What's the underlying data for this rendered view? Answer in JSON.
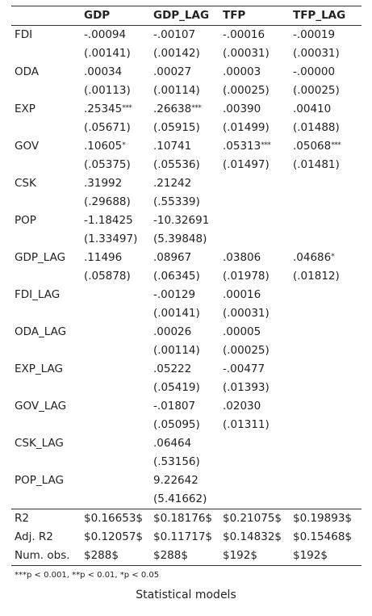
{
  "table": {
    "headers": [
      "",
      "GDP",
      "GDP_LAG",
      "TFP",
      "TFP_LAG"
    ],
    "rows": [
      {
        "label": "FDI",
        "coef": [
          [
            "-.00094",
            ""
          ],
          [
            "-.00107",
            ""
          ],
          [
            "-.00016",
            ""
          ],
          [
            "-.00019",
            ""
          ]
        ],
        "se": [
          "(.00141)",
          "(.00142)",
          "(.00031)",
          "(.00031)"
        ]
      },
      {
        "label": "ODA",
        "coef": [
          [
            ".00034",
            ""
          ],
          [
            ".00027",
            ""
          ],
          [
            ".00003",
            ""
          ],
          [
            "-.00000",
            ""
          ]
        ],
        "se": [
          "(.00113)",
          "(.00114)",
          "(.00025)",
          "(.00025)"
        ]
      },
      {
        "label": "EXP",
        "coef": [
          [
            ".25345",
            "***"
          ],
          [
            ".26638",
            "***"
          ],
          [
            ".00390",
            ""
          ],
          [
            ".00410",
            ""
          ]
        ],
        "se": [
          "(.05671)",
          "(.05915)",
          "(.01499)",
          "(.01488)"
        ]
      },
      {
        "label": "GOV",
        "coef": [
          [
            ".10605",
            "*"
          ],
          [
            ".10741",
            ""
          ],
          [
            ".05313",
            "***"
          ],
          [
            ".05068",
            "***"
          ]
        ],
        "se": [
          "(.05375)",
          "(.05536)",
          "(.01497)",
          "(.01481)"
        ]
      },
      {
        "label": "CSK",
        "coef": [
          [
            ".31992",
            ""
          ],
          [
            ".21242",
            ""
          ],
          [
            "",
            ""
          ],
          [
            "",
            ""
          ]
        ],
        "se": [
          "(.29688)",
          "(.55339)",
          "",
          ""
        ]
      },
      {
        "label": "POP",
        "coef": [
          [
            "-1.18425",
            ""
          ],
          [
            "-10.32691",
            ""
          ],
          [
            "",
            ""
          ],
          [
            "",
            ""
          ]
        ],
        "se": [
          "(1.33497)",
          "(5.39848)",
          "",
          ""
        ]
      },
      {
        "label": "GDP_LAG",
        "coef": [
          [
            ".11496",
            ""
          ],
          [
            ".08967",
            ""
          ],
          [
            ".03806",
            ""
          ],
          [
            ".04686",
            "*"
          ]
        ],
        "se": [
          "(.05878)",
          "(.06345)",
          "(.01978)",
          "(.01812)"
        ]
      },
      {
        "label": "FDI_LAG",
        "coef": [
          [
            "",
            ""
          ],
          [
            "-.00129",
            ""
          ],
          [
            ".00016",
            ""
          ],
          [
            "",
            ""
          ]
        ],
        "se": [
          "",
          "(.00141)",
          "(.00031)",
          ""
        ]
      },
      {
        "label": "ODA_LAG",
        "coef": [
          [
            "",
            ""
          ],
          [
            ".00026",
            ""
          ],
          [
            ".00005",
            ""
          ],
          [
            "",
            ""
          ]
        ],
        "se": [
          "",
          "(.00114)",
          "(.00025)",
          ""
        ]
      },
      {
        "label": "EXP_LAG",
        "coef": [
          [
            "",
            ""
          ],
          [
            ".05222",
            ""
          ],
          [
            "-.00477",
            ""
          ],
          [
            "",
            ""
          ]
        ],
        "se": [
          "",
          "(.05419)",
          "(.01393)",
          ""
        ]
      },
      {
        "label": "GOV_LAG",
        "coef": [
          [
            "",
            ""
          ],
          [
            "-.01807",
            ""
          ],
          [
            ".02030",
            ""
          ],
          [
            "",
            ""
          ]
        ],
        "se": [
          "",
          "(.05095)",
          "(.01311)",
          ""
        ]
      },
      {
        "label": "CSK_LAG",
        "coef": [
          [
            "",
            ""
          ],
          [
            ".06464",
            ""
          ],
          [
            "",
            ""
          ],
          [
            "",
            ""
          ]
        ],
        "se": [
          "",
          "(.53156)",
          "",
          ""
        ]
      },
      {
        "label": "POP_LAG",
        "coef": [
          [
            "",
            ""
          ],
          [
            "9.22642",
            ""
          ],
          [
            "",
            ""
          ],
          [
            "",
            ""
          ]
        ],
        "se": [
          "",
          "(5.41662)",
          "",
          ""
        ]
      }
    ],
    "gof": [
      {
        "label": "R",
        "sub": "2",
        "values": [
          "$0.16653$",
          "$0.18176$",
          "$0.21075$",
          "$0.19893$"
        ]
      },
      {
        "label": "Adj. R",
        "sub": "2",
        "values": [
          "$0.12057$",
          "$0.11717$",
          "$0.14832$",
          "$0.15468$"
        ]
      },
      {
        "label": "Num. obs.",
        "sub": "",
        "values": [
          "$288$",
          "$288$",
          "$192$",
          "$192$"
        ]
      }
    ]
  },
  "note": "***p < 0.001, **p < 0.01, *p < 0.05",
  "caption": "Statistical models"
}
